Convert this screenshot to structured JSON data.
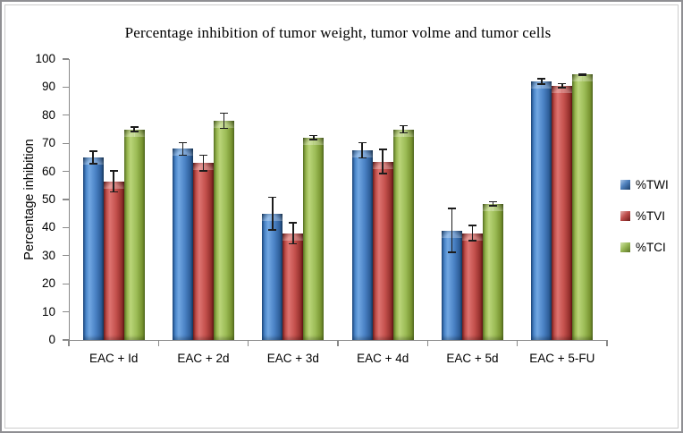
{
  "chart_data": {
    "type": "bar",
    "title": "Percentage inhibition of tumor weight, tumor volme and tumor cells",
    "xlabel": "",
    "ylabel": "Percentage inhibition",
    "ylim": [
      0,
      100
    ],
    "ytick_step": 10,
    "yticks": [
      0,
      10,
      20,
      30,
      40,
      50,
      60,
      70,
      80,
      90,
      100
    ],
    "grid": false,
    "legend_position": "right",
    "error_bars": true,
    "categories": [
      "EAC + Id",
      "EAC + 2d",
      "EAC + 3d",
      "EAC + 4d",
      "EAC + 5d",
      "EAC + 5-FU"
    ],
    "series": [
      {
        "name": "%TWI",
        "color": "#4F81BD",
        "values": [
          65,
          68,
          45,
          67.5,
          39,
          92
        ],
        "errors": [
          2.5,
          2.5,
          6,
          3,
          8,
          1.2
        ]
      },
      {
        "name": "%TVI",
        "color": "#C0504D",
        "values": [
          56.5,
          63,
          38,
          63.5,
          38,
          90.5
        ],
        "errors": [
          4,
          3,
          4,
          4.5,
          3,
          1
        ]
      },
      {
        "name": "%TCI",
        "color": "#9BBB59",
        "values": [
          75,
          78,
          72,
          75,
          48.5,
          94.5
        ],
        "errors": [
          1,
          3,
          1,
          1.5,
          1,
          0.5
        ]
      }
    ],
    "axis_color": "#8A8A8A"
  }
}
